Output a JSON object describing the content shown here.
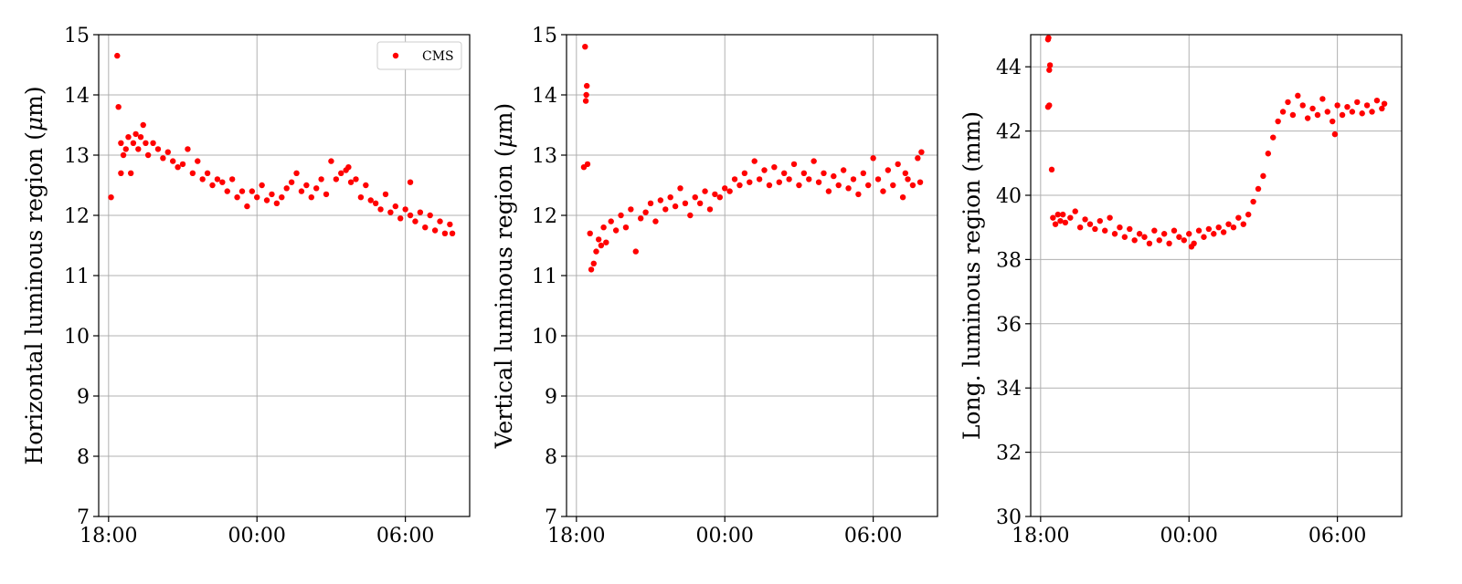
{
  "colors": {
    "marker": "#ff0000",
    "grid": "#b0b0b0",
    "axis": "#000000"
  },
  "chart_data": [
    {
      "type": "scatter",
      "title": "",
      "xlabel": "",
      "ylabel": "Horizontal luminous region (μm)",
      "ylabel_parts": [
        "Horizontal luminous region (",
        "μ",
        "m)"
      ],
      "grid": true,
      "legend": {
        "position": "top-right",
        "entries": [
          "CMS"
        ]
      },
      "x_unit": "hours since 18:00",
      "xlim": [
        -0.4,
        14.6
      ],
      "ylim": [
        7,
        15
      ],
      "xticks": [
        {
          "v": 0,
          "label": "18:00"
        },
        {
          "v": 6,
          "label": "00:00"
        },
        {
          "v": 12,
          "label": "06:00"
        }
      ],
      "yticks": [
        7,
        8,
        9,
        10,
        11,
        12,
        13,
        14,
        15
      ],
      "series": [
        {
          "name": "CMS",
          "points": [
            [
              0.1,
              12.3
            ],
            [
              0.35,
              14.65
            ],
            [
              0.4,
              13.8
            ],
            [
              0.5,
              12.7
            ],
            [
              0.5,
              13.2
            ],
            [
              0.6,
              13.0
            ],
            [
              0.7,
              13.1
            ],
            [
              0.8,
              13.3
            ],
            [
              0.9,
              12.7
            ],
            [
              1.0,
              13.2
            ],
            [
              1.1,
              13.35
            ],
            [
              1.2,
              13.1
            ],
            [
              1.3,
              13.3
            ],
            [
              1.4,
              13.5
            ],
            [
              1.5,
              13.2
            ],
            [
              1.6,
              13.0
            ],
            [
              1.8,
              13.2
            ],
            [
              2.0,
              13.1
            ],
            [
              2.2,
              12.95
            ],
            [
              2.4,
              13.05
            ],
            [
              2.6,
              12.9
            ],
            [
              2.8,
              12.8
            ],
            [
              3.0,
              12.85
            ],
            [
              3.2,
              13.1
            ],
            [
              3.4,
              12.7
            ],
            [
              3.6,
              12.9
            ],
            [
              3.8,
              12.6
            ],
            [
              4.0,
              12.7
            ],
            [
              4.2,
              12.5
            ],
            [
              4.4,
              12.6
            ],
            [
              4.6,
              12.55
            ],
            [
              4.8,
              12.4
            ],
            [
              5.0,
              12.6
            ],
            [
              5.2,
              12.3
            ],
            [
              5.4,
              12.4
            ],
            [
              5.6,
              12.15
            ],
            [
              5.8,
              12.4
            ],
            [
              6.0,
              12.3
            ],
            [
              6.2,
              12.5
            ],
            [
              6.4,
              12.25
            ],
            [
              6.6,
              12.35
            ],
            [
              6.8,
              12.2
            ],
            [
              7.0,
              12.3
            ],
            [
              7.2,
              12.45
            ],
            [
              7.4,
              12.55
            ],
            [
              7.6,
              12.7
            ],
            [
              7.8,
              12.4
            ],
            [
              8.0,
              12.5
            ],
            [
              8.2,
              12.3
            ],
            [
              8.4,
              12.45
            ],
            [
              8.6,
              12.6
            ],
            [
              8.8,
              12.35
            ],
            [
              9.0,
              12.9
            ],
            [
              9.2,
              12.6
            ],
            [
              9.4,
              12.7
            ],
            [
              9.6,
              12.75
            ],
            [
              9.8,
              12.55
            ],
            [
              10.0,
              12.6
            ],
            [
              10.2,
              12.3
            ],
            [
              10.4,
              12.5
            ],
            [
              10.6,
              12.25
            ],
            [
              10.8,
              12.2
            ],
            [
              11.0,
              12.1
            ],
            [
              11.2,
              12.35
            ],
            [
              11.4,
              12.05
            ],
            [
              11.6,
              12.15
            ],
            [
              11.8,
              11.95
            ],
            [
              12.0,
              12.1
            ],
            [
              12.2,
              12.0
            ],
            [
              12.4,
              11.9
            ],
            [
              12.6,
              12.05
            ],
            [
              12.8,
              11.8
            ],
            [
              13.0,
              12.0
            ],
            [
              13.2,
              11.75
            ],
            [
              13.4,
              11.9
            ],
            [
              13.6,
              11.7
            ],
            [
              13.8,
              11.85
            ],
            [
              13.9,
              11.7
            ],
            [
              12.2,
              12.55
            ],
            [
              9.7,
              12.8
            ]
          ]
        }
      ]
    },
    {
      "type": "scatter",
      "title": "",
      "xlabel": "",
      "ylabel": "Vertical luminous region (μm)",
      "ylabel_parts": [
        "Vertical luminous region (",
        "μ",
        "m)"
      ],
      "grid": true,
      "x_unit": "hours since 18:00",
      "xlim": [
        -0.4,
        14.6
      ],
      "ylim": [
        7,
        15
      ],
      "xticks": [
        {
          "v": 0,
          "label": "18:00"
        },
        {
          "v": 6,
          "label": "00:00"
        },
        {
          "v": 12,
          "label": "06:00"
        }
      ],
      "yticks": [
        7,
        8,
        9,
        10,
        11,
        12,
        13,
        14,
        15
      ],
      "series": [
        {
          "name": "",
          "points": [
            [
              0.3,
              12.8
            ],
            [
              0.35,
              14.8
            ],
            [
              0.38,
              13.9
            ],
            [
              0.4,
              14.0
            ],
            [
              0.42,
              14.15
            ],
            [
              0.45,
              12.85
            ],
            [
              0.55,
              11.7
            ],
            [
              0.6,
              11.1
            ],
            [
              0.7,
              11.2
            ],
            [
              0.8,
              11.4
            ],
            [
              0.9,
              11.6
            ],
            [
              1.0,
              11.5
            ],
            [
              1.1,
              11.8
            ],
            [
              1.2,
              11.55
            ],
            [
              1.4,
              11.9
            ],
            [
              1.6,
              11.75
            ],
            [
              1.8,
              12.0
            ],
            [
              2.0,
              11.8
            ],
            [
              2.2,
              12.1
            ],
            [
              2.4,
              11.4
            ],
            [
              2.6,
              11.95
            ],
            [
              2.8,
              12.05
            ],
            [
              3.0,
              12.2
            ],
            [
              3.2,
              11.9
            ],
            [
              3.4,
              12.25
            ],
            [
              3.6,
              12.1
            ],
            [
              3.8,
              12.3
            ],
            [
              4.0,
              12.15
            ],
            [
              4.2,
              12.45
            ],
            [
              4.4,
              12.2
            ],
            [
              4.6,
              12.0
            ],
            [
              4.8,
              12.3
            ],
            [
              5.0,
              12.2
            ],
            [
              5.2,
              12.4
            ],
            [
              5.4,
              12.1
            ],
            [
              5.6,
              12.35
            ],
            [
              5.8,
              12.3
            ],
            [
              6.0,
              12.45
            ],
            [
              6.2,
              12.4
            ],
            [
              6.4,
              12.6
            ],
            [
              6.6,
              12.5
            ],
            [
              6.8,
              12.7
            ],
            [
              7.0,
              12.55
            ],
            [
              7.2,
              12.9
            ],
            [
              7.4,
              12.6
            ],
            [
              7.6,
              12.75
            ],
            [
              7.8,
              12.5
            ],
            [
              8.0,
              12.8
            ],
            [
              8.2,
              12.55
            ],
            [
              8.4,
              12.7
            ],
            [
              8.6,
              12.6
            ],
            [
              8.8,
              12.85
            ],
            [
              9.0,
              12.5
            ],
            [
              9.2,
              12.7
            ],
            [
              9.4,
              12.6
            ],
            [
              9.6,
              12.9
            ],
            [
              9.8,
              12.55
            ],
            [
              10.0,
              12.7
            ],
            [
              10.2,
              12.4
            ],
            [
              10.4,
              12.65
            ],
            [
              10.6,
              12.5
            ],
            [
              10.8,
              12.75
            ],
            [
              11.0,
              12.45
            ],
            [
              11.2,
              12.6
            ],
            [
              11.4,
              12.35
            ],
            [
              11.6,
              12.7
            ],
            [
              11.8,
              12.5
            ],
            [
              12.0,
              12.95
            ],
            [
              12.2,
              12.6
            ],
            [
              12.4,
              12.4
            ],
            [
              12.6,
              12.75
            ],
            [
              12.8,
              12.5
            ],
            [
              13.0,
              12.85
            ],
            [
              13.2,
              12.3
            ],
            [
              13.4,
              12.6
            ],
            [
              13.6,
              12.5
            ],
            [
              13.8,
              12.95
            ],
            [
              13.95,
              13.05
            ],
            [
              13.9,
              12.55
            ],
            [
              13.3,
              12.7
            ]
          ]
        }
      ]
    },
    {
      "type": "scatter",
      "title": "",
      "xlabel": "",
      "ylabel": "Long. luminous region (mm)",
      "grid": true,
      "x_unit": "hours since 18:00",
      "xlim": [
        -0.4,
        14.6
      ],
      "ylim": [
        30,
        45
      ],
      "xticks": [
        {
          "v": 0,
          "label": "18:00"
        },
        {
          "v": 6,
          "label": "00:00"
        },
        {
          "v": 12,
          "label": "06:00"
        }
      ],
      "yticks": [
        30,
        32,
        34,
        36,
        38,
        40,
        42,
        44
      ],
      "series": [
        {
          "name": "",
          "points": [
            [
              0.3,
              44.85
            ],
            [
              0.32,
              44.9
            ],
            [
              0.35,
              43.9
            ],
            [
              0.38,
              44.05
            ],
            [
              0.3,
              42.75
            ],
            [
              0.35,
              42.8
            ],
            [
              0.45,
              40.8
            ],
            [
              0.5,
              39.3
            ],
            [
              0.6,
              39.1
            ],
            [
              0.7,
              39.4
            ],
            [
              0.8,
              39.2
            ],
            [
              0.9,
              39.4
            ],
            [
              1.0,
              39.15
            ],
            [
              1.2,
              39.3
            ],
            [
              1.4,
              39.5
            ],
            [
              1.6,
              39.0
            ],
            [
              1.8,
              39.25
            ],
            [
              2.0,
              39.1
            ],
            [
              2.2,
              38.95
            ],
            [
              2.4,
              39.2
            ],
            [
              2.6,
              38.9
            ],
            [
              2.8,
              39.3
            ],
            [
              3.0,
              38.8
            ],
            [
              3.2,
              39.0
            ],
            [
              3.4,
              38.7
            ],
            [
              3.6,
              38.95
            ],
            [
              3.8,
              38.6
            ],
            [
              4.0,
              38.8
            ],
            [
              4.2,
              38.7
            ],
            [
              4.4,
              38.5
            ],
            [
              4.6,
              38.9
            ],
            [
              4.8,
              38.6
            ],
            [
              5.0,
              38.8
            ],
            [
              5.2,
              38.5
            ],
            [
              5.4,
              38.9
            ],
            [
              5.6,
              38.7
            ],
            [
              5.8,
              38.6
            ],
            [
              6.0,
              38.8
            ],
            [
              6.2,
              38.5
            ],
            [
              6.4,
              38.9
            ],
            [
              6.6,
              38.7
            ],
            [
              6.8,
              38.95
            ],
            [
              7.0,
              38.8
            ],
            [
              7.2,
              39.0
            ],
            [
              7.4,
              38.85
            ],
            [
              7.6,
              39.1
            ],
            [
              7.8,
              39.0
            ],
            [
              8.0,
              39.3
            ],
            [
              8.2,
              39.1
            ],
            [
              8.4,
              39.4
            ],
            [
              8.6,
              39.8
            ],
            [
              8.8,
              40.2
            ],
            [
              9.0,
              40.6
            ],
            [
              9.2,
              41.3
            ],
            [
              9.4,
              41.8
            ],
            [
              9.6,
              42.3
            ],
            [
              9.8,
              42.6
            ],
            [
              10.0,
              42.9
            ],
            [
              10.2,
              42.5
            ],
            [
              10.4,
              43.1
            ],
            [
              10.6,
              42.8
            ],
            [
              10.8,
              42.4
            ],
            [
              11.0,
              42.7
            ],
            [
              11.2,
              42.5
            ],
            [
              11.4,
              43.0
            ],
            [
              11.6,
              42.6
            ],
            [
              11.8,
              42.3
            ],
            [
              12.0,
              42.8
            ],
            [
              12.2,
              42.5
            ],
            [
              12.4,
              42.75
            ],
            [
              12.6,
              42.6
            ],
            [
              12.8,
              42.9
            ],
            [
              13.0,
              42.55
            ],
            [
              13.2,
              42.8
            ],
            [
              13.4,
              42.6
            ],
            [
              13.6,
              42.95
            ],
            [
              13.8,
              42.7
            ],
            [
              13.9,
              42.85
            ],
            [
              11.9,
              41.9
            ],
            [
              6.1,
              38.4
            ]
          ]
        }
      ]
    }
  ]
}
